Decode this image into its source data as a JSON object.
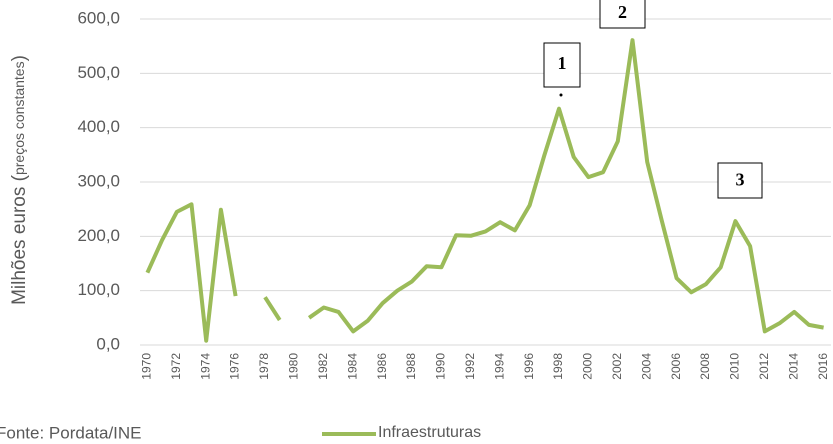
{
  "chart_data": {
    "type": "line",
    "y_label": "Milhões euros (",
    "y_label_note": "preços constantes",
    "y_label_end": ")",
    "source": "Fonte: Pordata/INE",
    "annotations": [
      "1",
      "2",
      "3"
    ],
    "categories": [
      "1970",
      null,
      "1972",
      null,
      "1974",
      null,
      "1976",
      null,
      "1978",
      null,
      "1980",
      null,
      "1982",
      null,
      "1984",
      null,
      "1986",
      null,
      "1988",
      null,
      "1990",
      null,
      "1992",
      null,
      "1994",
      null,
      "1996",
      null,
      "1998",
      null,
      "2000",
      null,
      "2002",
      null,
      "2004",
      null,
      "2006",
      null,
      "2008",
      null,
      "2010",
      null,
      "2012",
      null,
      "2014",
      null,
      "2016"
    ],
    "series": [
      {
        "name": "Infraestruturas",
        "color": "#9bbb59",
        "values": [
          133,
          193,
          245,
          259,
          8,
          249,
          90,
          null,
          88,
          46,
          null,
          50,
          69,
          61,
          25,
          45,
          77,
          100,
          117,
          145,
          143,
          202,
          201,
          209,
          226,
          211,
          257,
          349,
          435,
          346,
          309,
          318,
          375,
          561,
          337,
          228,
          123,
          97,
          112,
          143,
          228,
          182,
          25,
          40,
          61,
          37,
          32
        ]
      }
    ],
    "ylim": [
      0,
      600
    ],
    "yticks": [
      {
        "value": 0,
        "label": "0,0"
      },
      {
        "value": 100,
        "label": "100,0"
      },
      {
        "value": 200,
        "label": "200,0"
      },
      {
        "value": 300,
        "label": "300,0"
      },
      {
        "value": 400,
        "label": "400,0"
      },
      {
        "value": 500,
        "label": "500,0"
      },
      {
        "value": 600,
        "label": "600,0"
      }
    ],
    "grid": true
  }
}
